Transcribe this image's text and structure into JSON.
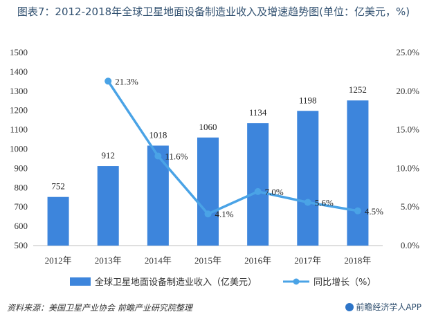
{
  "title": "图表7：2012-2018年全球卫星地面设备制造业收入及增速趋势图(单位：亿美元，%)",
  "source": "资料来源：美国卫星产业协会 前瞻产业研究院整理",
  "brand": "前瞻经济学人APP",
  "colors": {
    "bar": "#3d85dc",
    "line": "#4aa3e6"
  },
  "chart_data": {
    "type": "bar",
    "categories": [
      "2012年",
      "2013年",
      "2014年",
      "2015年",
      "2016年",
      "2017年",
      "2018年"
    ],
    "series": [
      {
        "name": "全球卫星地面设备制造业收入（亿美元）",
        "type": "bar",
        "axis": "left",
        "values": [
          752,
          912,
          1018,
          1060,
          1134,
          1198,
          1252
        ],
        "labels": [
          "752",
          "912",
          "1018",
          "1060",
          "1134",
          "1198",
          "1252"
        ]
      },
      {
        "name": "同比增长（%）",
        "type": "line",
        "axis": "right",
        "values": [
          null,
          21.3,
          11.6,
          4.1,
          7.0,
          5.6,
          4.5
        ],
        "labels": [
          "",
          "21.3%",
          "11.6%",
          "4.1%",
          "7.0%",
          "5.6%",
          "4.5%"
        ]
      }
    ],
    "y_left": {
      "min": 500,
      "max": 1500,
      "ticks": [
        "500",
        "600",
        "700",
        "800",
        "900",
        "1000",
        "1100",
        "1200",
        "1300",
        "1400",
        "1500"
      ]
    },
    "y_right": {
      "min": 0,
      "max": 25,
      "ticks": [
        "0.0%",
        "5.0%",
        "10.0%",
        "15.0%",
        "20.0%",
        "25.0%"
      ]
    },
    "grid": false,
    "legend": "bottom"
  }
}
